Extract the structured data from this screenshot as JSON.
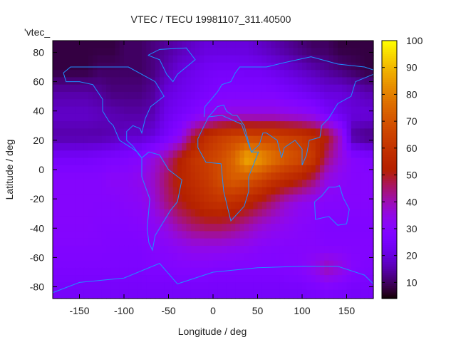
{
  "chart_data": {
    "type": "heatmap",
    "title": "VTEC / TECU 19981107_311.40500",
    "xlabel": "Longitude / deg",
    "ylabel": "Latitude / deg",
    "key_label": "'vtec_",
    "xlim": [
      -180,
      180
    ],
    "ylim": [
      -88,
      88
    ],
    "xticks": [
      -150,
      -100,
      -50,
      0,
      50,
      100,
      150
    ],
    "yticks": [
      -80,
      -60,
      -40,
      -20,
      0,
      20,
      40,
      60,
      80
    ],
    "cbrange": [
      4,
      100
    ],
    "cbticks": [
      10,
      20,
      30,
      40,
      50,
      60,
      70,
      80,
      90,
      100
    ],
    "palette": "black-purple-red-orange-yellow",
    "coastline_color": "#1e90ff",
    "grid_lon_centers": [
      -172.5,
      -157.5,
      -142.5,
      -127.5,
      -112.5,
      -97.5,
      -82.5,
      -67.5,
      -52.5,
      -37.5,
      -22.5,
      -7.5,
      7.5,
      22.5,
      37.5,
      52.5,
      67.5,
      82.5,
      97.5,
      112.5,
      127.5,
      142.5,
      157.5,
      172.5
    ],
    "grid_lat_centers": [
      82.5,
      67.5,
      52.5,
      37.5,
      22.5,
      7.5,
      -7.5,
      -22.5,
      -37.5,
      -52.5,
      -67.5,
      -82.5
    ],
    "vtec_grid": [
      [
        8,
        8,
        8,
        8,
        8,
        10,
        10,
        12,
        14,
        16,
        18,
        20,
        20,
        20,
        20,
        18,
        16,
        14,
        12,
        10,
        10,
        8,
        8,
        8
      ],
      [
        8,
        8,
        8,
        10,
        10,
        10,
        10,
        12,
        16,
        20,
        22,
        24,
        25,
        25,
        24,
        24,
        22,
        20,
        18,
        16,
        14,
        12,
        10,
        8
      ],
      [
        15,
        15,
        15,
        14,
        12,
        12,
        12,
        14,
        20,
        22,
        24,
        26,
        28,
        28,
        28,
        28,
        28,
        26,
        24,
        22,
        20,
        20,
        18,
        16
      ],
      [
        18,
        18,
        18,
        17,
        16,
        15,
        15,
        16,
        22,
        25,
        28,
        32,
        35,
        36,
        36,
        36,
        36,
        35,
        34,
        32,
        26,
        22,
        20,
        20
      ],
      [
        15,
        15,
        15,
        15,
        16,
        18,
        18,
        20,
        25,
        32,
        48,
        58,
        63,
        66,
        67,
        66,
        66,
        64,
        62,
        58,
        52,
        38,
        14,
        12
      ],
      [
        25,
        25,
        25,
        26,
        27,
        28,
        30,
        36,
        42,
        52,
        60,
        64,
        68,
        75,
        88,
        85,
        78,
        72,
        68,
        62,
        45,
        36,
        30,
        28
      ],
      [
        30,
        30,
        30,
        30,
        32,
        32,
        34,
        38,
        46,
        54,
        58,
        62,
        68,
        72,
        70,
        66,
        60,
        56,
        52,
        45,
        35,
        32,
        30,
        30
      ],
      [
        30,
        30,
        30,
        30,
        30,
        31,
        32,
        36,
        44,
        50,
        54,
        58,
        60,
        58,
        55,
        50,
        44,
        38,
        34,
        32,
        30,
        30,
        30,
        30
      ],
      [
        30,
        30,
        30,
        29,
        29,
        29,
        30,
        32,
        36,
        42,
        46,
        48,
        48,
        46,
        42,
        38,
        35,
        33,
        31,
        30,
        28,
        28,
        28,
        28
      ],
      [
        29,
        29,
        29,
        29,
        28,
        28,
        28,
        30,
        31,
        33,
        35,
        35,
        35,
        34,
        33,
        31,
        30,
        30,
        30,
        30,
        29,
        29,
        29,
        29
      ],
      [
        27,
        27,
        27,
        27,
        27,
        27,
        27,
        28,
        28,
        29,
        29,
        29,
        28,
        28,
        28,
        28,
        28,
        29,
        30,
        34,
        40,
        36,
        30,
        28
      ],
      [
        25,
        25,
        25,
        25,
        25,
        25,
        25,
        25,
        25,
        25,
        25,
        25,
        25,
        25,
        25,
        25,
        25,
        25,
        25,
        26,
        27,
        26,
        25,
        25
      ]
    ],
    "coastlines": [
      {
        "name": "north-america",
        "pts": [
          [
            -168,
            66
          ],
          [
            -160,
            70
          ],
          [
            -140,
            70
          ],
          [
            -120,
            70
          ],
          [
            -95,
            70
          ],
          [
            -80,
            65
          ],
          [
            -65,
            60
          ],
          [
            -55,
            50
          ],
          [
            -70,
            43
          ],
          [
            -76,
            35
          ],
          [
            -80,
            25
          ],
          [
            -82,
            28
          ],
          [
            -90,
            30
          ],
          [
            -97,
            26
          ],
          [
            -97,
            20
          ],
          [
            -90,
            16
          ],
          [
            -83,
            10
          ],
          [
            -80,
            8
          ],
          [
            -85,
            12
          ],
          [
            -92,
            15
          ],
          [
            -105,
            20
          ],
          [
            -112,
            30
          ],
          [
            -117,
            33
          ],
          [
            -124,
            40
          ],
          [
            -124,
            48
          ],
          [
            -135,
            58
          ],
          [
            -150,
            60
          ],
          [
            -165,
            60
          ],
          [
            -168,
            66
          ]
        ]
      },
      {
        "name": "greenland",
        "pts": [
          [
            -73,
            78
          ],
          [
            -60,
            82
          ],
          [
            -30,
            83
          ],
          [
            -20,
            75
          ],
          [
            -40,
            65
          ],
          [
            -45,
            60
          ],
          [
            -52,
            65
          ],
          [
            -60,
            75
          ],
          [
            -73,
            78
          ]
        ]
      },
      {
        "name": "south-america",
        "pts": [
          [
            -80,
            8
          ],
          [
            -72,
            12
          ],
          [
            -60,
            10
          ],
          [
            -50,
            0
          ],
          [
            -35,
            -7
          ],
          [
            -40,
            -22
          ],
          [
            -48,
            -28
          ],
          [
            -58,
            -38
          ],
          [
            -65,
            -45
          ],
          [
            -68,
            -55
          ],
          [
            -72,
            -50
          ],
          [
            -74,
            -40
          ],
          [
            -71,
            -20
          ],
          [
            -80,
            -5
          ],
          [
            -80,
            8
          ]
        ]
      },
      {
        "name": "africa",
        "pts": [
          [
            -17,
            21
          ],
          [
            -10,
            30
          ],
          [
            -5,
            36
          ],
          [
            10,
            37
          ],
          [
            32,
            31
          ],
          [
            43,
            12
          ],
          [
            51,
            12
          ],
          [
            40,
            -5
          ],
          [
            40,
            -15
          ],
          [
            35,
            -25
          ],
          [
            20,
            -35
          ],
          [
            18,
            -30
          ],
          [
            12,
            -15
          ],
          [
            9,
            4
          ],
          [
            -8,
            5
          ],
          [
            -17,
            15
          ],
          [
            -17,
            21
          ]
        ]
      },
      {
        "name": "eurasia",
        "pts": [
          [
            -10,
            36
          ],
          [
            -9,
            43
          ],
          [
            -2,
            48
          ],
          [
            5,
            53
          ],
          [
            10,
            58
          ],
          [
            20,
            60
          ],
          [
            25,
            66
          ],
          [
            30,
            70
          ],
          [
            60,
            70
          ],
          [
            80,
            73
          ],
          [
            110,
            77
          ],
          [
            140,
            72
          ],
          [
            170,
            70
          ],
          [
            180,
            68
          ],
          [
            180,
            65
          ],
          [
            160,
            60
          ],
          [
            155,
            50
          ],
          [
            140,
            45
          ],
          [
            130,
            35
          ],
          [
            122,
            30
          ],
          [
            120,
            22
          ],
          [
            108,
            20
          ],
          [
            105,
            10
          ],
          [
            100,
            3
          ],
          [
            100,
            14
          ],
          [
            92,
            20
          ],
          [
            80,
            15
          ],
          [
            77,
            8
          ],
          [
            72,
            20
          ],
          [
            60,
            25
          ],
          [
            56,
            25
          ],
          [
            52,
            17
          ],
          [
            43,
            12
          ],
          [
            35,
            30
          ],
          [
            27,
            37
          ],
          [
            22,
            37
          ],
          [
            15,
            40
          ],
          [
            12,
            44
          ],
          [
            5,
            43
          ],
          [
            -5,
            36
          ]
        ]
      },
      {
        "name": "australia",
        "pts": [
          [
            114,
            -22
          ],
          [
            122,
            -18
          ],
          [
            130,
            -12
          ],
          [
            137,
            -12
          ],
          [
            142,
            -11
          ],
          [
            146,
            -19
          ],
          [
            153,
            -27
          ],
          [
            150,
            -37
          ],
          [
            140,
            -38
          ],
          [
            130,
            -32
          ],
          [
            115,
            -34
          ],
          [
            114,
            -22
          ]
        ]
      },
      {
        "name": "antarctica",
        "pts": [
          [
            -180,
            -84
          ],
          [
            -150,
            -77
          ],
          [
            -100,
            -74
          ],
          [
            -60,
            -64
          ],
          [
            -40,
            -78
          ],
          [
            0,
            -70
          ],
          [
            50,
            -67
          ],
          [
            100,
            -66
          ],
          [
            140,
            -66
          ],
          [
            170,
            -72
          ],
          [
            180,
            -78
          ]
        ]
      }
    ]
  }
}
